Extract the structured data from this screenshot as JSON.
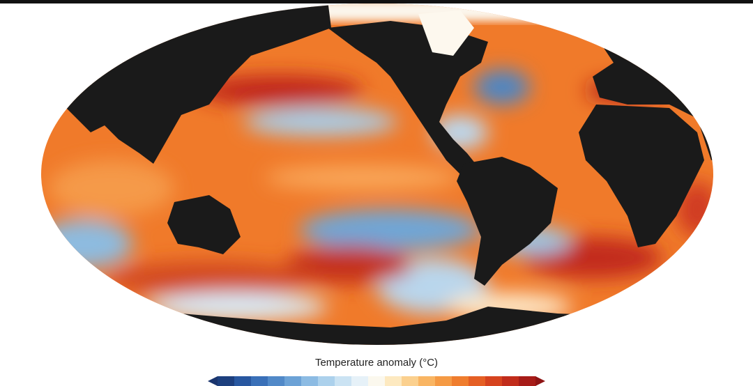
{
  "map": {
    "legend": {
      "title": "Temperature anomaly (°C)"
    }
  }
}
